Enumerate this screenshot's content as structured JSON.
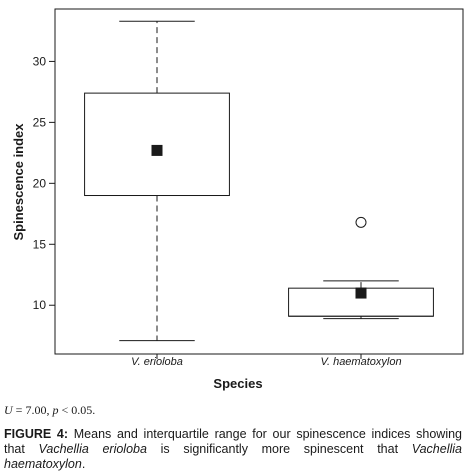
{
  "chart_data": {
    "type": "box",
    "xlabel": "Species",
    "ylabel": "Spinescence index",
    "ylim": [
      6,
      34.3
    ],
    "yticks": [
      10,
      15,
      20,
      25,
      30
    ],
    "grid": false,
    "mean_marker": "square",
    "categories": [
      "V. erioloba",
      "V. haematoxylon"
    ],
    "boxes": [
      {
        "category": "V. erioloba",
        "whisker_low": 7.1,
        "q1": 19.0,
        "median": 19.0,
        "q3": 27.4,
        "whisker_high": 33.3,
        "mean": 22.7,
        "outliers": []
      },
      {
        "category": "V. haematoxylon",
        "whisker_low": 8.9,
        "q1": 9.1,
        "median": 9.1,
        "q3": 11.4,
        "whisker_high": 12.0,
        "mean": 11.0,
        "outliers": [
          16.8
        ]
      }
    ]
  },
  "stat_line": {
    "u_symbol": "U",
    "u_value": " = 7.00, ",
    "p_symbol": "p",
    "p_value": " < 0.05."
  },
  "caption": {
    "label": "FIGURE 4:",
    "text_1": " Means and interquartile range for our spinescence indices showing that ",
    "species_1": "Vachellia erioloba",
    "text_2": " is significantly more spinescent that ",
    "species_2": "Vachellia haematoxylon",
    "text_3": "."
  }
}
